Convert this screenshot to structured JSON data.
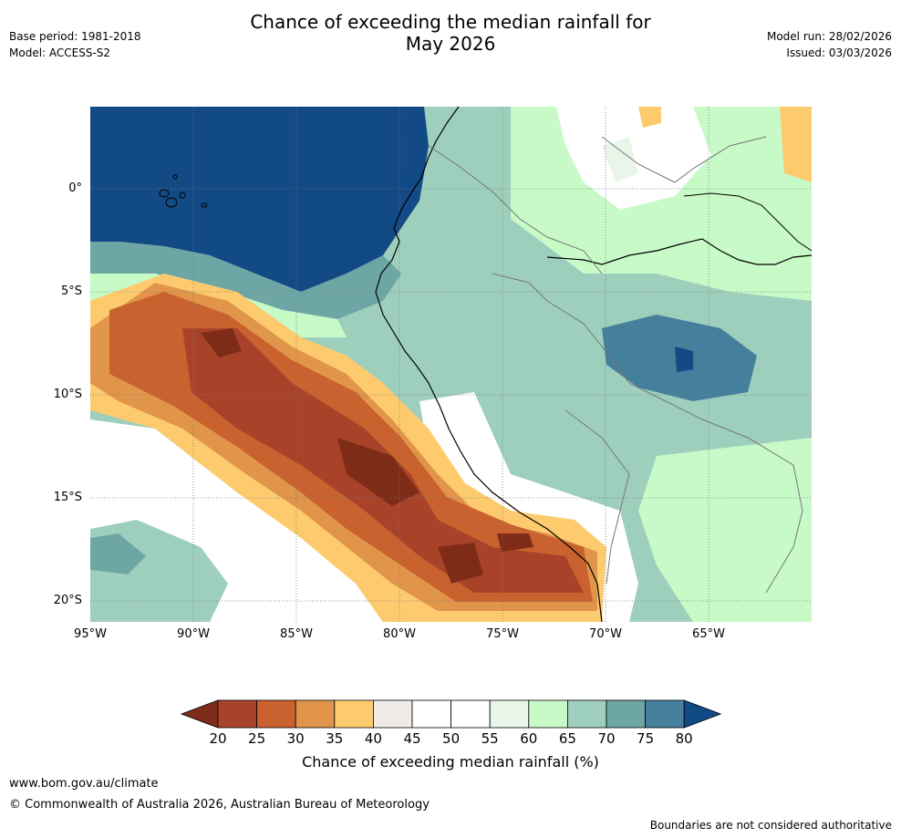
{
  "title_line1": "Chance of exceeding the median rainfall for",
  "title_line2": "May 2026",
  "meta_left": [
    "Base period: 1981-2018",
    "Model: ACCESS-S2"
  ],
  "meta_right": [
    "Model run: 28/02/2026",
    "Issued: 03/03/2026"
  ],
  "map": {
    "lon_range": [
      -95,
      -60
    ],
    "lat_range": [
      4,
      -21
    ],
    "lat_ticks": [
      "0°",
      "5°S",
      "10°S",
      "15°S",
      "20°S"
    ],
    "lon_ticks": [
      "95°W",
      "90°W",
      "85°W",
      "80°W",
      "75°W",
      "70°W",
      "65°W"
    ],
    "ocean_color": "#124a85",
    "land_base_color": "#9ecfbd"
  },
  "colorbar": {
    "label": "Chance of exceeding median rainfall (%)",
    "ticks": [
      "20",
      "25",
      "30",
      "35",
      "40",
      "45",
      "50",
      "55",
      "60",
      "65",
      "70",
      "75",
      "80"
    ],
    "colors": [
      "#7e2c17",
      "#a8432a",
      "#c9622f",
      "#e1954a",
      "#fdcb6e",
      "#efebe7",
      "#ffffff",
      "#ffffff",
      "#eaf5ea",
      "#c8fac8",
      "#9ecfbd",
      "#6ea6a6",
      "#447f9c",
      "#124a85"
    ]
  },
  "footer": {
    "url": "www.bom.gov.au/climate",
    "copyright": "© Commonwealth of Australia 2026, Australian Bureau of Meteorology",
    "disclaimer": "Boundaries are not considered authoritative"
  }
}
